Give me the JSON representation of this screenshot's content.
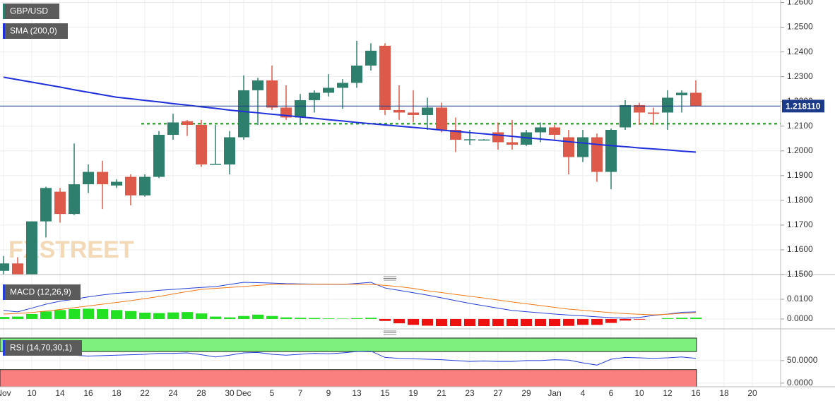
{
  "chart_data": [
    {
      "type": "candlestick",
      "symbol": "GBP/USD",
      "watermark": "FXSTREET",
      "categories": [
        "Nov",
        null,
        "10",
        null,
        "14",
        null,
        "16",
        null,
        "18",
        null,
        "22",
        null,
        "24",
        null,
        "28",
        null,
        "30",
        "Dec",
        null,
        "5",
        null,
        "7",
        null,
        "9",
        null,
        "13",
        null,
        "15",
        null,
        "19",
        null,
        "21",
        null,
        "23",
        null,
        "27",
        null,
        "29",
        null,
        "Jan",
        null,
        "4",
        null,
        "6",
        null,
        "10",
        null,
        "12",
        null,
        "16",
        null,
        "18",
        null,
        "20"
      ],
      "open": [
        1.1515,
        1.1545,
        1.148,
        1.1715,
        1.1835,
        1.1745,
        1.1865,
        1.1915,
        1.186,
        1.1895,
        1.182,
        1.1895,
        1.2065,
        1.212,
        1.2105,
        1.1945,
        1.1945,
        1.2055,
        1.2245,
        1.2285,
        1.2175,
        1.2135,
        1.2205,
        1.2235,
        1.2255,
        1.2275,
        1.2345,
        1.2425,
        1.2165,
        1.2155,
        1.2145,
        1.2175,
        1.2085,
        1.2045,
        1.2045,
        1.2075,
        1.2035,
        1.2025,
        1.2075,
        1.2095,
        1.2055,
        1.1975,
        1.2055,
        1.1915,
        1.2095,
        1.2185,
        1.2155,
        1.2155,
        1.2225,
        1.2235,
        null,
        null,
        null,
        null
      ],
      "high": [
        1.1575,
        1.157,
        1.1715,
        1.1855,
        1.185,
        1.203,
        1.1945,
        1.196,
        1.1885,
        1.1905,
        1.1905,
        1.208,
        1.215,
        1.2125,
        1.2125,
        1.2105,
        1.208,
        1.2305,
        1.2295,
        1.2345,
        1.2265,
        1.223,
        1.2245,
        1.231,
        1.229,
        1.2445,
        1.2435,
        1.2435,
        1.2265,
        1.2245,
        1.2215,
        1.2195,
        1.2135,
        1.2085,
        1.2048,
        1.2115,
        1.2125,
        1.2085,
        1.2115,
        1.2105,
        1.2085,
        1.2085,
        1.207,
        1.209,
        1.2205,
        1.2195,
        1.2175,
        1.2245,
        1.2245,
        1.2285,
        null,
        null,
        null,
        null
      ],
      "low": [
        1.15,
        1.148,
        1.145,
        1.165,
        1.171,
        1.174,
        1.183,
        1.1765,
        1.185,
        1.178,
        1.1815,
        1.189,
        1.2045,
        1.206,
        1.1935,
        1.1945,
        1.1905,
        1.2045,
        1.2105,
        1.2165,
        1.2125,
        1.2105,
        1.2155,
        1.222,
        1.217,
        1.2255,
        1.2325,
        1.2145,
        1.2125,
        1.2115,
        1.2085,
        1.2075,
        1.1995,
        1.2025,
        1.2043,
        1.2005,
        1.2005,
        1.202,
        1.2035,
        1.2045,
        1.1905,
        1.1955,
        1.1875,
        1.1845,
        1.2085,
        1.2105,
        1.2105,
        1.2085,
        1.2155,
        1.2181,
        null,
        null,
        null,
        null
      ],
      "close": [
        1.1545,
        1.15,
        1.1715,
        1.185,
        1.1745,
        1.1865,
        1.1915,
        1.1865,
        1.1875,
        1.182,
        1.1895,
        1.2065,
        1.2115,
        1.2105,
        1.1945,
        1.1948,
        1.2055,
        1.2245,
        1.2285,
        1.2175,
        1.2135,
        1.2205,
        1.2235,
        1.2255,
        1.2275,
        1.2345,
        1.2405,
        1.2165,
        1.2155,
        1.2145,
        1.2175,
        1.2085,
        1.2045,
        1.2047,
        1.2046,
        1.2035,
        1.2025,
        1.2075,
        1.2095,
        1.2065,
        1.1975,
        1.2055,
        1.1915,
        1.2085,
        1.2185,
        1.2155,
        1.215,
        1.2215,
        1.2235,
        1.2181,
        null,
        null,
        null,
        null
      ],
      "up_color": "#2f7f6d",
      "down_color": "#dd5a4a",
      "overlays": [
        {
          "name": "SMA (200,0)",
          "color": "#1f2fdc",
          "values": [
            1.2298,
            1.2288,
            1.2278,
            1.2268,
            1.2258,
            1.2247,
            1.2237,
            1.2227,
            1.2217,
            1.2211,
            1.2204,
            1.2198,
            1.2191,
            1.2185,
            1.2178,
            1.2172,
            1.2165,
            1.2159,
            1.2154,
            1.2148,
            1.2143,
            1.2137,
            1.2132,
            1.2126,
            1.2121,
            1.2115,
            1.211,
            1.2105,
            1.21,
            1.2095,
            1.209,
            1.2084,
            1.2079,
            1.2074,
            1.2069,
            1.2064,
            1.2059,
            1.2053,
            1.2048,
            1.2043,
            1.2037,
            1.2032,
            1.2026,
            1.2021,
            1.2017,
            1.2012,
            1.2008,
            1.2004,
            1.1999,
            1.1995,
            null,
            null,
            null,
            null
          ]
        }
      ],
      "levels": [
        {
          "value": 1.211,
          "color": "#3aaa3a"
        }
      ],
      "last_price": {
        "value": 1.21811,
        "label": "1.218110",
        "color": "#1b3a8a"
      },
      "ylim": [
        1.15,
        1.261
      ],
      "yticks": [
        {
          "value": 1.26,
          "label": "1.2600"
        },
        {
          "value": 1.25,
          "label": "1.2500"
        },
        {
          "value": 1.24,
          "label": "1.2400"
        },
        {
          "value": 1.23,
          "label": "1.2300"
        },
        {
          "value": 1.22,
          "label": "1.2200"
        },
        {
          "value": 1.21,
          "label": "1.2100"
        },
        {
          "value": 1.2,
          "label": "1.2000"
        },
        {
          "value": 1.19,
          "label": "1.1900"
        },
        {
          "value": 1.18,
          "label": "1.1800"
        },
        {
          "value": 1.17,
          "label": "1.1700"
        },
        {
          "value": 1.16,
          "label": "1.1600"
        },
        {
          "value": 1.15,
          "label": "1.1500"
        }
      ],
      "grid": true
    },
    {
      "type": "macd",
      "name": "MACD (12,26,9)",
      "histogram": {
        "pos_color": "#22e022",
        "neg_color": "#ee1111",
        "values": [
          0.001,
          0.0012,
          0.0025,
          0.0038,
          0.0045,
          0.005,
          0.0052,
          0.005,
          0.0045,
          0.004,
          0.0032,
          0.003,
          0.0033,
          0.0035,
          0.0028,
          0.0012,
          0.0008,
          0.0015,
          0.0022,
          0.0015,
          0.0008,
          0.0006,
          0.0005,
          0.0003,
          0.0002,
          0.0004,
          0.0006,
          -0.001,
          -0.0022,
          -0.003,
          -0.0034,
          -0.004,
          -0.0044,
          -0.0047,
          -0.0047,
          -0.0047,
          -0.0045,
          -0.0043,
          -0.004,
          -0.0037,
          -0.0035,
          -0.003,
          -0.003,
          -0.002,
          -0.0008,
          -0.0003,
          0,
          0.0004,
          0.0006,
          0.0007,
          null,
          null,
          null,
          null
        ]
      },
      "lines": [
        {
          "color": "#2440d8",
          "values": [
            0.0043,
            0.0036,
            0.0055,
            0.0075,
            0.009,
            0.01,
            0.0112,
            0.0122,
            0.013,
            0.0135,
            0.0139,
            0.0145,
            0.015,
            0.0155,
            0.016,
            0.0164,
            0.0175,
            0.0186,
            0.0184,
            0.0182,
            0.0179,
            0.0178,
            0.0177,
            0.0176,
            0.0175,
            0.018,
            0.0186,
            0.0157,
            0.0145,
            0.0133,
            0.0121,
            0.0107,
            0.0093,
            0.0079,
            0.0067,
            0.0055,
            0.0043,
            0.0037,
            0.0031,
            0.0025,
            0.002,
            0.0016,
            0.0011,
            0.0007,
            0.0004,
            0.0008,
            0.0018,
            0.0025,
            0.0034,
            0.0036,
            null,
            null,
            null,
            null
          ]
        },
        {
          "color": "#f07a1a",
          "values": [
            0.0025,
            0.0028,
            0.0033,
            0.004,
            0.0048,
            0.0057,
            0.0066,
            0.0075,
            0.0084,
            0.0093,
            0.0103,
            0.0114,
            0.0127,
            0.0139,
            0.015,
            0.0155,
            0.016,
            0.0165,
            0.017,
            0.0175,
            0.0176,
            0.0176,
            0.0176,
            0.0176,
            0.0176,
            0.0176,
            0.0175,
            0.017,
            0.0164,
            0.0155,
            0.0143,
            0.0134,
            0.0124,
            0.0115,
            0.0106,
            0.0096,
            0.0086,
            0.0077,
            0.0068,
            0.0059,
            0.005,
            0.0044,
            0.0038,
            0.0032,
            0.0027,
            0.0024,
            0.0021,
            0.0024,
            0.0028,
            0.0032,
            null,
            null,
            null,
            null
          ]
        }
      ],
      "ylim": [
        -0.0036,
        0.0193
      ],
      "yticks": [
        {
          "value": 0.01,
          "label": "0.0100"
        },
        {
          "value": 0,
          "label": "0.0000"
        }
      ],
      "grid": true
    },
    {
      "type": "rsi",
      "name": "RSI (14,70,30,1)",
      "overbought": 70,
      "oversold": 30,
      "overbought_color": "#7df07d",
      "oversold_color": "#fa7f7f",
      "lines": [
        {
          "color": "#2440d8",
          "values": [
            65,
            64,
            66,
            63,
            62,
            62,
            60,
            61,
            62,
            63,
            64,
            66,
            66,
            67,
            63,
            58,
            62,
            67,
            68,
            64,
            62,
            64,
            66,
            65,
            67,
            70,
            71,
            57,
            55,
            54,
            53,
            52,
            50,
            48,
            49,
            48,
            48,
            50,
            50,
            52,
            51,
            45,
            40,
            53,
            57,
            56,
            55,
            56,
            58,
            55,
            null,
            null,
            null,
            null
          ]
        }
      ],
      "ylim": [
        -8,
        103
      ],
      "yticks": [
        {
          "value": 50,
          "label": "50.0000"
        },
        {
          "value": 0,
          "label": "0.0000"
        }
      ],
      "grid": true
    }
  ]
}
